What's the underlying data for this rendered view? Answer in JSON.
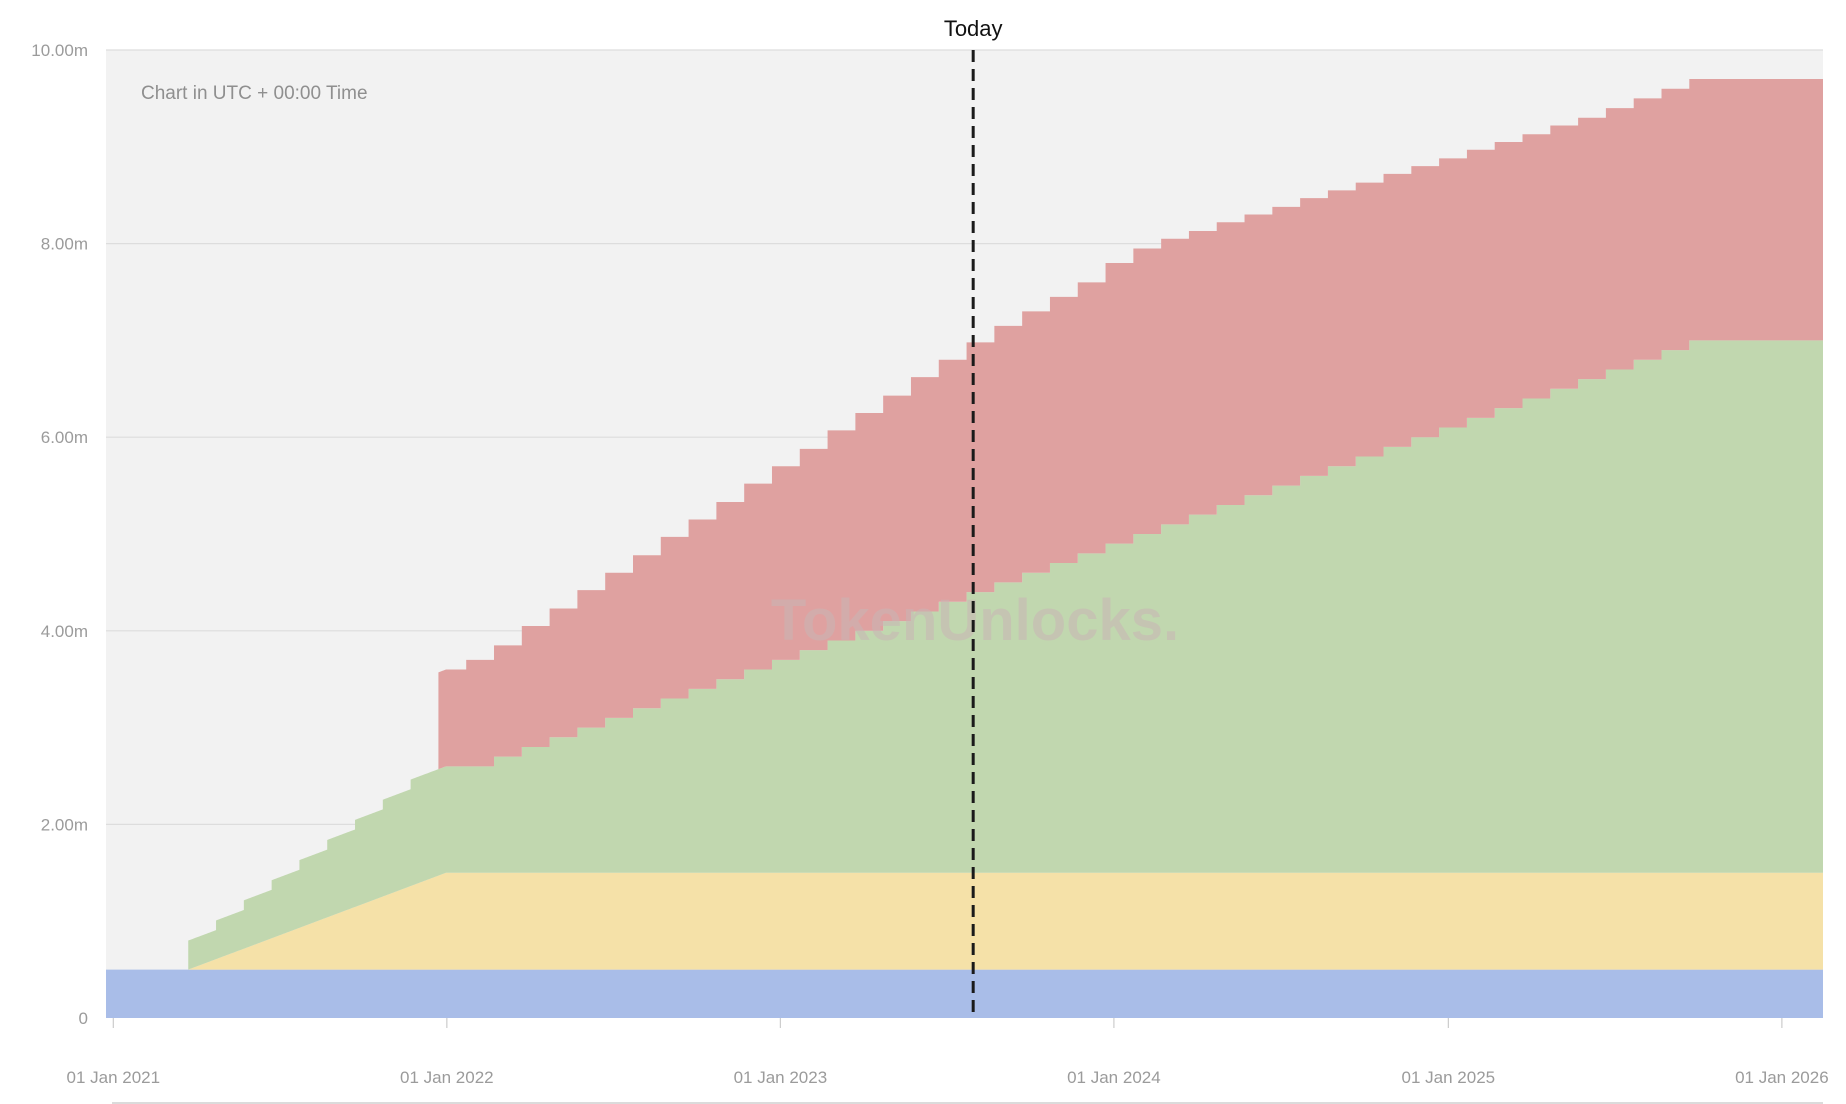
{
  "chart_data": {
    "type": "area",
    "stacked": true,
    "step": true,
    "note": "Chart in UTC + 00:00 Time",
    "watermark": "TokenUnlocks.",
    "today_marker": {
      "label": "Today",
      "x": "2023-07-31"
    },
    "ylim": [
      0,
      10000000
    ],
    "y_ticks": [
      {
        "value": 0,
        "label": "0"
      },
      {
        "value": 2000000,
        "label": "2.00m"
      },
      {
        "value": 4000000,
        "label": "4.00m"
      },
      {
        "value": 6000000,
        "label": "6.00m"
      },
      {
        "value": 8000000,
        "label": "8.00m"
      },
      {
        "value": 10000000,
        "label": "10.00m"
      }
    ],
    "xlim": [
      "2020-12-24",
      "2026-02-15"
    ],
    "x_ticks": [
      {
        "value": "2021-01-01",
        "label": "01 Jan 2021"
      },
      {
        "value": "2022-01-01",
        "label": "01 Jan 2022"
      },
      {
        "value": "2023-01-01",
        "label": "01 Jan 2023"
      },
      {
        "value": "2024-01-01",
        "label": "01 Jan 2024"
      },
      {
        "value": "2025-01-01",
        "label": "01 Jan 2025"
      },
      {
        "value": "2026-01-01",
        "label": "01 Jan 2026"
      }
    ],
    "grid": true,
    "legend": "none",
    "colors": {
      "plot_background": "#f2f2f2",
      "gridline": "#dddddd",
      "today_line": "#1a1a1a",
      "watermark": "#c9b5b5"
    },
    "series": [
      {
        "color": "#a9bde8",
        "kind": "constant",
        "start": "2020-12-24",
        "end": "2026-02-15",
        "values": [
          500000
        ]
      },
      {
        "color": "#f5e1a8",
        "kind": "linear",
        "points": [
          {
            "x": "2020-12-24",
            "y": 0
          },
          {
            "x": "2021-03-24",
            "y": 0
          },
          {
            "x": "2021-12-31",
            "y": 1000000
          },
          {
            "x": "2026-02-15",
            "y": 1000000
          }
        ]
      },
      {
        "color": "#c1d7af",
        "kind": "monthly_steps",
        "start": "2021-03-24",
        "step_days": 30.42,
        "values": [
          300000,
          400000,
          500000,
          600000,
          700000,
          800000,
          900000,
          1000000,
          1100000,
          1100000,
          1100000,
          1200000,
          1300000,
          1400000,
          1500000,
          1600000,
          1700000,
          1800000,
          1900000,
          2000000,
          2100000,
          2200000,
          2300000,
          2400000,
          2500000,
          2600000,
          2700000,
          2800000,
          2900000,
          3000000,
          3100000,
          3200000,
          3300000,
          3400000,
          3500000,
          3600000,
          3700000,
          3800000,
          3900000,
          4000000,
          4100000,
          4200000,
          4300000,
          4400000,
          4500000,
          4600000,
          4700000,
          4800000,
          4900000,
          5000000,
          5100000,
          5200000,
          5300000,
          5400000,
          5500000,
          5500000
        ]
      },
      {
        "color": "#dfa1a0",
        "kind": "monthly_steps",
        "start": "2021-03-24",
        "step_days": 30.42,
        "values": [
          0,
          0,
          0,
          0,
          0,
          0,
          0,
          0,
          0,
          1000000,
          1100000,
          1150000,
          1250000,
          1330000,
          1420000,
          1500000,
          1580000,
          1670000,
          1750000,
          1830000,
          1920000,
          2000000,
          2080000,
          2170000,
          2250000,
          2330000,
          2420000,
          2500000,
          2580000,
          2650000,
          2700000,
          2750000,
          2800000,
          2900000,
          2950000,
          2950000,
          2930000,
          2920000,
          2900000,
          2880000,
          2870000,
          2850000,
          2830000,
          2820000,
          2800000,
          2780000,
          2770000,
          2750000,
          2730000,
          2720000,
          2700000,
          2700000,
          2700000,
          2700000,
          2700000,
          2700000
        ]
      }
    ]
  }
}
